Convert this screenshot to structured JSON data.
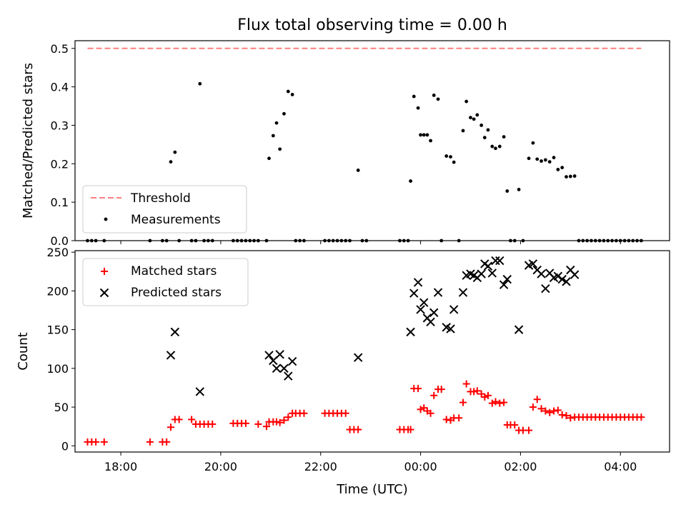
{
  "chart_data": [
    {
      "type": "scatter",
      "title": "Flux total observing time = 0.00 h",
      "xlabel": "",
      "ylabel": "Matched/Predicted stars",
      "ylim": [
        0,
        0.52
      ],
      "yticks": [
        "0.0",
        "0.1",
        "0.2",
        "0.3",
        "0.4",
        "0.5"
      ],
      "grid": false,
      "legend_position": "lower-left",
      "threshold": {
        "name": "Threshold",
        "value": 0.5,
        "x_start": "17:20",
        "x_end": "04:25",
        "color": "#ff7f7f",
        "style": "dashed"
      },
      "series": [
        {
          "name": "Measurements",
          "marker": "dot",
          "color": "#000000",
          "points": [
            [
              "17:20",
              0.0
            ],
            [
              "17:25",
              0.0
            ],
            [
              "17:30",
              0.0
            ],
            [
              "17:40",
              0.0
            ],
            [
              "18:35",
              0.0
            ],
            [
              "18:50",
              0.0
            ],
            [
              "18:55",
              0.0
            ],
            [
              "19:00",
              0.205
            ],
            [
              "19:05",
              0.23
            ],
            [
              "19:10",
              0.0
            ],
            [
              "19:25",
              0.0
            ],
            [
              "19:30",
              0.0
            ],
            [
              "19:35",
              0.408
            ],
            [
              "19:40",
              0.0
            ],
            [
              "19:45",
              0.0
            ],
            [
              "19:50",
              0.0
            ],
            [
              "20:15",
              0.0
            ],
            [
              "20:20",
              0.0
            ],
            [
              "20:25",
              0.0
            ],
            [
              "20:30",
              0.0
            ],
            [
              "20:35",
              0.0
            ],
            [
              "20:40",
              0.0
            ],
            [
              "20:45",
              0.0
            ],
            [
              "20:55",
              0.0
            ],
            [
              "20:58",
              0.214
            ],
            [
              "21:03",
              0.273
            ],
            [
              "21:07",
              0.306
            ],
            [
              "21:11",
              0.238
            ],
            [
              "21:16",
              0.33
            ],
            [
              "21:21",
              0.388
            ],
            [
              "21:26",
              0.38
            ],
            [
              "21:30",
              0.0
            ],
            [
              "21:35",
              0.0
            ],
            [
              "21:40",
              0.0
            ],
            [
              "22:05",
              0.0
            ],
            [
              "22:10",
              0.0
            ],
            [
              "22:15",
              0.0
            ],
            [
              "22:20",
              0.0
            ],
            [
              "22:25",
              0.0
            ],
            [
              "22:30",
              0.0
            ],
            [
              "22:35",
              0.0
            ],
            [
              "22:45",
              0.183
            ],
            [
              "22:50",
              0.0
            ],
            [
              "22:55",
              0.0
            ],
            [
              "23:35",
              0.0
            ],
            [
              "23:40",
              0.0
            ],
            [
              "23:45",
              0.0
            ],
            [
              "23:48",
              0.155
            ],
            [
              "23:52",
              0.375
            ],
            [
              "23:57",
              0.345
            ],
            [
              "00:00",
              0.275
            ],
            [
              "00:04",
              0.275
            ],
            [
              "00:08",
              0.275
            ],
            [
              "00:12",
              0.26
            ],
            [
              "00:16",
              0.378
            ],
            [
              "00:21",
              0.368
            ],
            [
              "00:25",
              0.0
            ],
            [
              "00:31",
              0.22
            ],
            [
              "00:36",
              0.218
            ],
            [
              "00:40",
              0.204
            ],
            [
              "00:46",
              0.0
            ],
            [
              "00:51",
              0.286
            ],
            [
              "00:55",
              0.362
            ],
            [
              "01:00",
              0.32
            ],
            [
              "01:04",
              0.316
            ],
            [
              "01:08",
              0.327
            ],
            [
              "01:13",
              0.3
            ],
            [
              "01:17",
              0.268
            ],
            [
              "01:21",
              0.288
            ],
            [
              "01:26",
              0.245
            ],
            [
              "01:30",
              0.24
            ],
            [
              "01:35",
              0.245
            ],
            [
              "01:40",
              0.27
            ],
            [
              "01:44",
              0.129
            ],
            [
              "01:48",
              0.0
            ],
            [
              "01:53",
              0.0
            ],
            [
              "01:58",
              0.133
            ],
            [
              "02:03",
              0.0
            ],
            [
              "02:10",
              0.214
            ],
            [
              "02:15",
              0.254
            ],
            [
              "02:20",
              0.212
            ],
            [
              "02:25",
              0.207
            ],
            [
              "02:30",
              0.21
            ],
            [
              "02:35",
              0.205
            ],
            [
              "02:40",
              0.216
            ],
            [
              "02:45",
              0.185
            ],
            [
              "02:50",
              0.19
            ],
            [
              "02:55",
              0.166
            ],
            [
              "03:00",
              0.167
            ],
            [
              "03:05",
              0.168
            ],
            [
              "03:10",
              0.0
            ],
            [
              "03:15",
              0.0
            ],
            [
              "03:20",
              0.0
            ],
            [
              "03:25",
              0.0
            ],
            [
              "03:30",
              0.0
            ],
            [
              "03:35",
              0.0
            ],
            [
              "03:40",
              0.0
            ],
            [
              "03:45",
              0.0
            ],
            [
              "03:50",
              0.0
            ],
            [
              "03:55",
              0.0
            ],
            [
              "04:00",
              0.0
            ],
            [
              "04:05",
              0.0
            ],
            [
              "04:10",
              0.0
            ],
            [
              "04:15",
              0.0
            ],
            [
              "04:20",
              0.0
            ],
            [
              "04:25",
              0.0
            ]
          ]
        }
      ]
    },
    {
      "type": "scatter",
      "title": "",
      "xlabel": "Time (UTC)",
      "ylabel": "Count",
      "ylim": [
        -8,
        252
      ],
      "yticks": [
        "0",
        "50",
        "100",
        "150",
        "200",
        "250"
      ],
      "xticks": [
        "18:00",
        "20:00",
        "22:00",
        "00:00",
        "02:00",
        "04:00"
      ],
      "grid": false,
      "legend_position": "upper-left",
      "series": [
        {
          "name": "Matched stars",
          "marker": "plus",
          "color": "#ff0000",
          "points": [
            [
              "17:20",
              5
            ],
            [
              "17:25",
              5
            ],
            [
              "17:30",
              5
            ],
            [
              "17:40",
              5
            ],
            [
              "18:35",
              5
            ],
            [
              "18:50",
              5
            ],
            [
              "18:55",
              5
            ],
            [
              "19:00",
              24
            ],
            [
              "19:05",
              34
            ],
            [
              "19:10",
              34
            ],
            [
              "19:25",
              34
            ],
            [
              "19:30",
              28
            ],
            [
              "19:35",
              28
            ],
            [
              "19:40",
              28
            ],
            [
              "19:45",
              28
            ],
            [
              "19:50",
              28
            ],
            [
              "20:15",
              29
            ],
            [
              "20:20",
              29
            ],
            [
              "20:25",
              29
            ],
            [
              "20:30",
              29
            ],
            [
              "20:45",
              28
            ],
            [
              "20:55",
              25
            ],
            [
              "20:58",
              31
            ],
            [
              "21:03",
              31
            ],
            [
              "21:07",
              31
            ],
            [
              "21:11",
              30
            ],
            [
              "21:16",
              33
            ],
            [
              "21:21",
              37
            ],
            [
              "21:26",
              42
            ],
            [
              "21:30",
              42
            ],
            [
              "21:35",
              42
            ],
            [
              "21:40",
              42
            ],
            [
              "22:05",
              42
            ],
            [
              "22:10",
              42
            ],
            [
              "22:15",
              42
            ],
            [
              "22:20",
              42
            ],
            [
              "22:25",
              42
            ],
            [
              "22:30",
              42
            ],
            [
              "22:35",
              21
            ],
            [
              "22:40",
              21
            ],
            [
              "22:45",
              21
            ],
            [
              "23:35",
              21
            ],
            [
              "23:40",
              21
            ],
            [
              "23:45",
              21
            ],
            [
              "23:48",
              21
            ],
            [
              "23:52",
              74
            ],
            [
              "23:57",
              74
            ],
            [
              "00:00",
              47
            ],
            [
              "00:04",
              49
            ],
            [
              "00:08",
              45
            ],
            [
              "00:12",
              42
            ],
            [
              "00:16",
              65
            ],
            [
              "00:21",
              73
            ],
            [
              "00:25",
              73
            ],
            [
              "00:31",
              34
            ],
            [
              "00:36",
              33
            ],
            [
              "00:40",
              36
            ],
            [
              "00:46",
              36
            ],
            [
              "00:51",
              56
            ],
            [
              "00:55",
              80
            ],
            [
              "01:00",
              70
            ],
            [
              "01:04",
              70
            ],
            [
              "01:08",
              71
            ],
            [
              "01:13",
              67
            ],
            [
              "01:17",
              63
            ],
            [
              "01:21",
              65
            ],
            [
              "01:26",
              55
            ],
            [
              "01:30",
              57
            ],
            [
              "01:35",
              55
            ],
            [
              "01:40",
              56
            ],
            [
              "01:44",
              27
            ],
            [
              "01:48",
              27
            ],
            [
              "01:53",
              27
            ],
            [
              "01:58",
              20
            ],
            [
              "02:03",
              20
            ],
            [
              "02:10",
              20
            ],
            [
              "02:15",
              50
            ],
            [
              "02:20",
              60
            ],
            [
              "02:25",
              48
            ],
            [
              "02:30",
              45
            ],
            [
              "02:35",
              43
            ],
            [
              "02:40",
              45
            ],
            [
              "02:45",
              46
            ],
            [
              "02:50",
              40
            ],
            [
              "02:55",
              39
            ],
            [
              "03:00",
              36
            ],
            [
              "03:05",
              37
            ],
            [
              "03:10",
              37
            ],
            [
              "03:15",
              37
            ],
            [
              "03:20",
              37
            ],
            [
              "03:25",
              37
            ],
            [
              "03:30",
              37
            ],
            [
              "03:35",
              37
            ],
            [
              "03:40",
              37
            ],
            [
              "03:45",
              37
            ],
            [
              "03:50",
              37
            ],
            [
              "03:55",
              37
            ],
            [
              "04:00",
              37
            ],
            [
              "04:05",
              37
            ],
            [
              "04:10",
              37
            ],
            [
              "04:15",
              37
            ],
            [
              "04:20",
              37
            ],
            [
              "04:25",
              37
            ]
          ]
        },
        {
          "name": "Predicted stars",
          "marker": "x",
          "color": "#000000",
          "points": [
            [
              "19:00",
              117
            ],
            [
              "19:05",
              147
            ],
            [
              "19:35",
              70
            ],
            [
              "20:58",
              117
            ],
            [
              "21:03",
              110
            ],
            [
              "21:07",
              100
            ],
            [
              "21:11",
              118
            ],
            [
              "21:16",
              100
            ],
            [
              "21:21",
              90
            ],
            [
              "21:26",
              109
            ],
            [
              "22:45",
              114
            ],
            [
              "23:48",
              147
            ],
            [
              "23:52",
              197
            ],
            [
              "23:57",
              211
            ],
            [
              "00:00",
              176
            ],
            [
              "00:04",
              185
            ],
            [
              "00:08",
              165
            ],
            [
              "00:12",
              160
            ],
            [
              "00:16",
              172
            ],
            [
              "00:21",
              198
            ],
            [
              "00:31",
              153
            ],
            [
              "00:36",
              151
            ],
            [
              "00:40",
              176
            ],
            [
              "00:51",
              198
            ],
            [
              "00:55",
              220
            ],
            [
              "01:00",
              222
            ],
            [
              "01:04",
              220
            ],
            [
              "01:08",
              217
            ],
            [
              "01:13",
              222
            ],
            [
              "01:17",
              235
            ],
            [
              "01:21",
              232
            ],
            [
              "01:26",
              223
            ],
            [
              "01:30",
              239
            ],
            [
              "01:35",
              239
            ],
            [
              "01:40",
              208
            ],
            [
              "01:44",
              215
            ],
            [
              "01:58",
              150
            ],
            [
              "02:10",
              233
            ],
            [
              "02:15",
              235
            ],
            [
              "02:20",
              227
            ],
            [
              "02:25",
              222
            ],
            [
              "02:30",
              203
            ],
            [
              "02:35",
              223
            ],
            [
              "02:40",
              217
            ],
            [
              "02:45",
              219
            ],
            [
              "02:50",
              215
            ],
            [
              "02:55",
              212
            ],
            [
              "03:00",
              227
            ],
            [
              "03:05",
              221
            ]
          ]
        }
      ]
    }
  ]
}
